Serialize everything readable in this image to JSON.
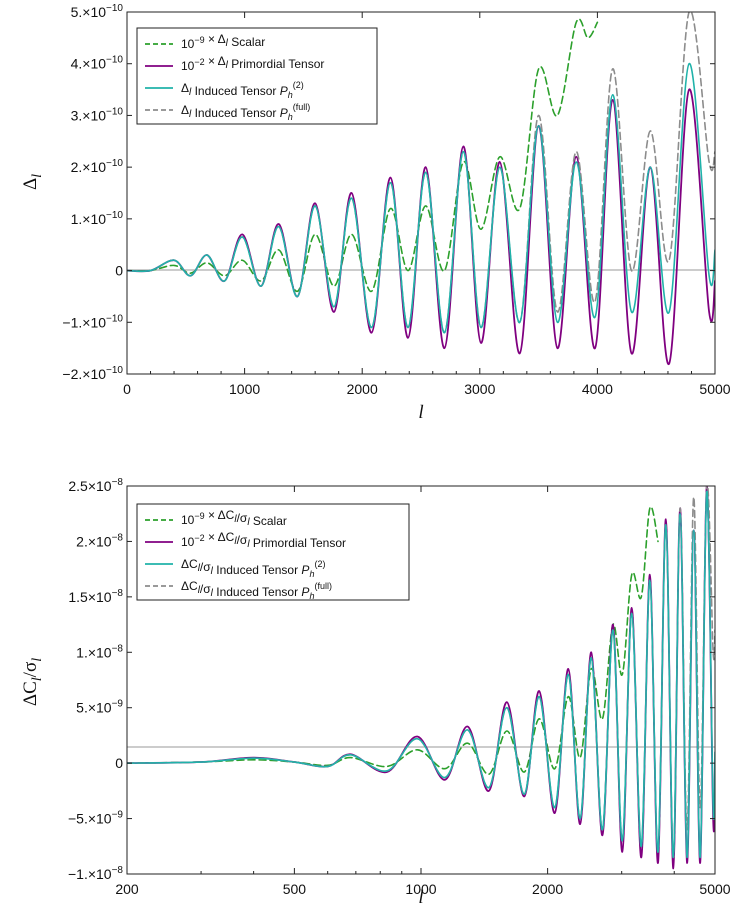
{
  "colors": {
    "scalar": "#2ca02c",
    "primordial": "#800080",
    "induced2": "#20b2aa",
    "inducedfull": "#8c8c8c",
    "zero_line": "#9a9a9a"
  },
  "chart_data": [
    {
      "type": "line",
      "xlabel": "l",
      "ylabel": "Δl",
      "xlim": [
        0,
        5000
      ],
      "ylim": [
        -2e-10,
        5e-10
      ],
      "x_ticks": [
        "0",
        "1000",
        "2000",
        "3000",
        "4000",
        "5000"
      ],
      "y_ticks": [
        {
          "value": 5e-10,
          "mant": "5.×10",
          "exp": "−10"
        },
        {
          "value": 4e-10,
          "mant": "4.×10",
          "exp": "−10"
        },
        {
          "value": 3e-10,
          "mant": "3.×10",
          "exp": "−10"
        },
        {
          "value": 2e-10,
          "mant": "2.×10",
          "exp": "−10"
        },
        {
          "value": 1e-10,
          "mant": "1.×10",
          "exp": "−10"
        },
        {
          "value": 0,
          "mant": "0",
          "exp": ""
        },
        {
          "value": -1e-10,
          "mant": "−1.×10",
          "exp": "−10"
        },
        {
          "value": -2e-10,
          "mant": "−2.×10",
          "exp": "−10"
        }
      ],
      "legend_position": "top-left",
      "legend": [
        {
          "prefix": "10",
          "prefix_sup": "−9",
          "body": " × Δl Scalar",
          "sup": ""
        },
        {
          "prefix": "10",
          "prefix_sup": "−2",
          "body": " × Δl Primordial Tensor",
          "sup": ""
        },
        {
          "prefix": "",
          "prefix_sup": "",
          "body": "Δl Induced Tensor Ph",
          "sup": "(2)"
        },
        {
          "prefix": "",
          "prefix_sup": "",
          "body": "Δl Induced Tensor Ph",
          "sup": "(full)"
        }
      ],
      "oscillation_phase": [
        0,
        400,
        680,
        980,
        1290,
        1600,
        1910,
        2240,
        2540,
        2860,
        3170,
        3500,
        3820,
        4130,
        4450,
        4780,
        5000
      ],
      "series": [
        {
          "key": "scalar",
          "style": "dashed",
          "x": [
            0,
            200,
            400,
            540,
            680,
            830,
            980,
            1140,
            1290,
            1450,
            1600,
            1760,
            1910,
            2080,
            2240,
            2390,
            2540,
            2700,
            2860,
            3010,
            3170,
            3340,
            3500,
            3660,
            3820,
            3920,
            4000
          ],
          "y": [
            0,
            0,
            1e-11,
            -5e-12,
            1.5e-11,
            -1e-11,
            2e-11,
            -2e-11,
            4e-11,
            -4e-11,
            7e-11,
            -3e-11,
            7e-11,
            -4e-11,
            1.2e-10,
            0,
            1.25e-10,
            0,
            2.1e-10,
            8e-11,
            2.2e-10,
            1.2e-10,
            3.9e-10,
            3e-10,
            4.8e-10,
            4.5e-10,
            4.8e-10
          ]
        },
        {
          "key": "primordial",
          "style": "solid",
          "x": [
            0,
            200,
            400,
            540,
            680,
            830,
            980,
            1140,
            1290,
            1450,
            1600,
            1760,
            1910,
            2080,
            2240,
            2390,
            2540,
            2700,
            2860,
            3010,
            3170,
            3340,
            3500,
            3660,
            3820,
            3980,
            4130,
            4290,
            4450,
            4610,
            4780,
            4950,
            5000
          ],
          "y": [
            0,
            0,
            2e-11,
            -1e-11,
            3e-11,
            -2e-11,
            7e-11,
            -3e-11,
            9e-11,
            -5e-11,
            1.3e-10,
            -8e-11,
            1.5e-10,
            -1.2e-10,
            1.8e-10,
            -1.3e-10,
            2e-10,
            -1.5e-10,
            2.4e-10,
            -1.4e-10,
            2.1e-10,
            -1.6e-10,
            2.8e-10,
            -1.5e-10,
            2.2e-10,
            -1.5e-10,
            3.3e-10,
            -1.6e-10,
            2e-10,
            -1.8e-10,
            3.5e-10,
            -8e-11,
            -2e-11
          ]
        },
        {
          "key": "induced2",
          "style": "solid",
          "x": [
            0,
            200,
            400,
            540,
            680,
            830,
            980,
            1140,
            1290,
            1450,
            1600,
            1760,
            1910,
            2080,
            2240,
            2390,
            2540,
            2700,
            2860,
            3010,
            3170,
            3340,
            3500,
            3660,
            3820,
            3980,
            4130,
            4290,
            4450,
            4610,
            4780,
            4950,
            5000
          ],
          "y": [
            0,
            0,
            2e-11,
            -1e-11,
            3e-11,
            -2e-11,
            6.5e-11,
            -3e-11,
            8.5e-11,
            -5e-11,
            1.25e-10,
            -7e-11,
            1.4e-10,
            -1.1e-10,
            1.7e-10,
            -1.1e-10,
            1.9e-10,
            -1.2e-10,
            2.3e-10,
            -1.1e-10,
            2e-10,
            -1e-10,
            2.8e-10,
            -1e-10,
            2.1e-10,
            -9e-11,
            3.4e-10,
            -8e-11,
            2e-10,
            -8e-11,
            4e-10,
            -1e-11,
            4e-11
          ]
        },
        {
          "key": "inducedfull",
          "style": "dashed",
          "x": [
            0,
            200,
            400,
            540,
            680,
            830,
            980,
            1140,
            1290,
            1450,
            1600,
            1760,
            1910,
            2080,
            2240,
            2390,
            2540,
            2700,
            2860,
            3010,
            3170,
            3340,
            3500,
            3660,
            3820,
            3980,
            4130,
            4290,
            4450,
            4610,
            4780,
            4950,
            5000
          ],
          "y": [
            0,
            0,
            2e-11,
            -1e-11,
            3e-11,
            -2e-11,
            6.5e-11,
            -3e-11,
            8.5e-11,
            -5e-11,
            1.25e-10,
            -7e-11,
            1.4e-10,
            -1.1e-10,
            1.7e-10,
            -1.1e-10,
            1.9e-10,
            -1.2e-10,
            2.3e-10,
            -1.1e-10,
            2e-10,
            -1e-10,
            3e-10,
            -8e-11,
            2.3e-10,
            -6e-11,
            3.9e-10,
            0,
            2.7e-10,
            2e-11,
            5e-10,
            2.1e-10,
            2.3e-10
          ]
        }
      ]
    },
    {
      "type": "line",
      "xlabel": "l",
      "ylabel": "ΔCl/σl",
      "xscale": "log",
      "xlim": [
        200,
        5000
      ],
      "ylim": [
        -1e-08,
        2.5e-08
      ],
      "x_ticks": [
        {
          "value": 200,
          "label": "200"
        },
        {
          "value": 500,
          "label": "500"
        },
        {
          "value": 1000,
          "label": "1000"
        },
        {
          "value": 2000,
          "label": "2000"
        },
        {
          "value": 5000,
          "label": "5000"
        }
      ],
      "y_ticks": [
        {
          "value": 2.5e-08,
          "mant": "2.5×10",
          "exp": "−8"
        },
        {
          "value": 2e-08,
          "mant": "2.×10",
          "exp": "−8"
        },
        {
          "value": 1.5e-08,
          "mant": "1.5×10",
          "exp": "−8"
        },
        {
          "value": 1e-08,
          "mant": "1.×10",
          "exp": "−8"
        },
        {
          "value": 5e-09,
          "mant": "5.×10",
          "exp": "−9"
        },
        {
          "value": 0,
          "mant": "0",
          "exp": ""
        },
        {
          "value": -5e-09,
          "mant": "−5.×10",
          "exp": "−9"
        },
        {
          "value": -1e-08,
          "mant": "−1.×10",
          "exp": "−8"
        }
      ],
      "legend_position": "top-left",
      "legend": [
        {
          "prefix": "10",
          "prefix_sup": "−9",
          "body": " × ΔCl/σl Scalar",
          "sup": ""
        },
        {
          "prefix": "10",
          "prefix_sup": "−2",
          "body": " × ΔCl/σl Primordial Tensor",
          "sup": ""
        },
        {
          "prefix": "",
          "prefix_sup": "",
          "body": "ΔCl/σl Induced Tensor Ph",
          "sup": "(2)"
        },
        {
          "prefix": "",
          "prefix_sup": "",
          "body": "ΔCl/σl Induced Tensor Ph",
          "sup": "(full)"
        }
      ],
      "series": [
        {
          "key": "scalar",
          "style": "dashed",
          "x": [
            200,
            300,
            400,
            500,
            600,
            680,
            830,
            980,
            1140,
            1290,
            1450,
            1600,
            1760,
            1910,
            2080,
            2240,
            2390,
            2540,
            2700,
            2860,
            3010,
            3170,
            3340,
            3500,
            3660
          ],
          "y": [
            0,
            1e-10,
            3e-10,
            1e-10,
            -2e-10,
            5e-10,
            -3e-10,
            1.2e-09,
            -5e-10,
            1.8e-09,
            -1e-09,
            2.9e-09,
            -8e-10,
            4e-09,
            -5e-10,
            6e-09,
            5e-10,
            8.5e-09,
            4e-09,
            1.25e-08,
            8e-09,
            1.7e-08,
            1.5e-08,
            2.3e-08,
            2e-08
          ]
        },
        {
          "key": "primordial",
          "style": "solid",
          "x": [
            200,
            300,
            400,
            500,
            600,
            680,
            830,
            980,
            1140,
            1290,
            1450,
            1600,
            1760,
            1910,
            2080,
            2240,
            2390,
            2540,
            2700,
            2860,
            3010,
            3170,
            3340,
            3500,
            3660,
            3820,
            3980,
            4130,
            4290,
            4450,
            4610,
            4780,
            4950,
            5000
          ],
          "y": [
            0,
            1e-10,
            5e-10,
            1e-10,
            -3e-10,
            8e-10,
            -8e-10,
            2.4e-09,
            -1.5e-09,
            3.3e-09,
            -2.5e-09,
            5.5e-09,
            -3e-09,
            6.5e-09,
            -4.5e-09,
            8.5e-09,
            -5.5e-09,
            1e-08,
            -6.5e-09,
            1.25e-08,
            -8e-09,
            1.4e-08,
            -8.5e-09,
            1.7e-08,
            -9e-09,
            2.2e-08,
            -9.5e-09,
            2.3e-08,
            -9e-09,
            2.1e-08,
            -9e-09,
            2.5e-08,
            -5e-09,
            0.0
          ]
        },
        {
          "key": "induced2",
          "style": "solid",
          "x": [
            200,
            300,
            400,
            500,
            600,
            680,
            830,
            980,
            1140,
            1290,
            1450,
            1600,
            1760,
            1910,
            2080,
            2240,
            2390,
            2540,
            2700,
            2860,
            3010,
            3170,
            3340,
            3500,
            3660,
            3820,
            3980,
            4130,
            4290,
            4450,
            4610,
            4780,
            4950,
            5000
          ],
          "y": [
            0,
            1e-10,
            4.5e-10,
            1e-10,
            -3e-10,
            7.5e-10,
            -7e-10,
            2.2e-09,
            -1.3e-09,
            3e-09,
            -2.2e-09,
            5e-09,
            -2.8e-09,
            6e-09,
            -4e-09,
            8e-09,
            -5e-09,
            9.5e-09,
            -6e-09,
            1.2e-08,
            -7e-09,
            1.35e-08,
            -7.5e-09,
            1.65e-08,
            -8e-09,
            2.15e-08,
            -8.5e-09,
            2.25e-08,
            -8.5e-09,
            2.1e-08,
            -8.5e-09,
            2.45e-08,
            -4e-09,
            1e-09
          ]
        },
        {
          "key": "inducedfull",
          "style": "dashed",
          "x": [
            200,
            300,
            400,
            500,
            600,
            680,
            830,
            980,
            1140,
            1290,
            1450,
            1600,
            1760,
            1910,
            2080,
            2240,
            2390,
            2540,
            2700,
            2860,
            3010,
            3170,
            3340,
            3500,
            3660,
            3820,
            3980,
            4130,
            4290,
            4450,
            4610,
            4780,
            4950,
            5000
          ],
          "y": [
            0,
            1e-10,
            4.5e-10,
            1e-10,
            -3e-10,
            7.5e-10,
            -7e-10,
            2.2e-09,
            -1.3e-09,
            3e-09,
            -2.2e-09,
            5e-09,
            -2.8e-09,
            6e-09,
            -4e-09,
            8e-09,
            -5e-09,
            9.5e-09,
            -6e-09,
            1.2e-08,
            -7e-09,
            1.35e-08,
            -7.5e-09,
            1.65e-08,
            -8e-09,
            2.15e-08,
            -8.5e-09,
            2.3e-08,
            -6e-09,
            2.4e-08,
            -4e-09,
            2.5e-08,
            1e-08,
            1.2e-08
          ]
        }
      ]
    }
  ]
}
